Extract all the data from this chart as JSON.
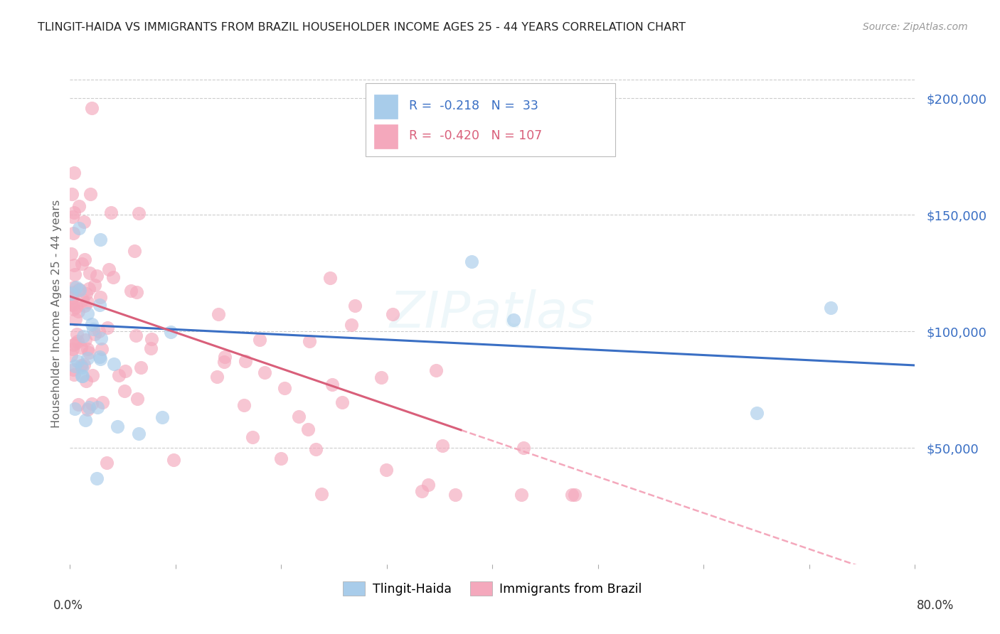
{
  "title": "TLINGIT-HAIDA VS IMMIGRANTS FROM BRAZIL HOUSEHOLDER INCOME AGES 25 - 44 YEARS CORRELATION CHART",
  "source": "Source: ZipAtlas.com",
  "ylabel": "Householder Income Ages 25 - 44 years",
  "ytick_labels": [
    "$50,000",
    "$100,000",
    "$150,000",
    "$200,000"
  ],
  "ytick_values": [
    50000,
    100000,
    150000,
    200000
  ],
  "legend_label1": "Tlingit-Haida",
  "legend_label2": "Immigrants from Brazil",
  "R1": "-0.218",
  "N1": "33",
  "R2": "-0.420",
  "N2": "107",
  "color_blue": "#A8CCEA",
  "color_pink": "#F4A8BC",
  "line_color_blue": "#3A6FC4",
  "line_color_pink": "#D95F7A",
  "line_color_pink_dash": "#F4A8BC",
  "background_color": "#FFFFFF",
  "xlim": [
    0.0,
    0.8
  ],
  "ylim": [
    0,
    215000
  ]
}
